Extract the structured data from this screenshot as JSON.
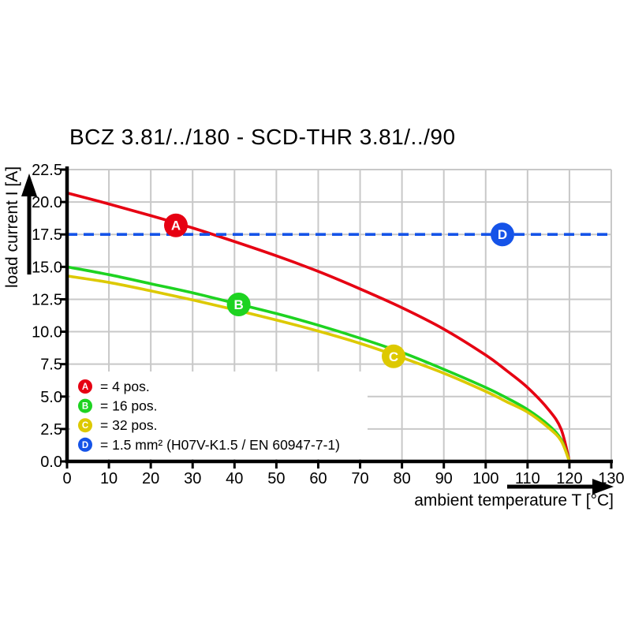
{
  "chart_data": {
    "type": "line",
    "title": "BCZ 3.81/../180 - SCD-THR 3.81/../90",
    "xlabel": "ambient temperature T [°C]",
    "ylabel": "load current I [A]",
    "xlim": [
      0,
      130
    ],
    "ylim": [
      0,
      22.5
    ],
    "grid": true,
    "legend_position": "inside-bottom-left",
    "x_ticks": [
      0,
      10,
      20,
      30,
      40,
      50,
      60,
      70,
      80,
      90,
      100,
      110,
      120,
      130
    ],
    "x_tick_labels": [
      "0",
      "10",
      "20",
      "30",
      "40",
      "50",
      "60",
      "70",
      "80",
      "90",
      "100",
      "110",
      "120",
      "130"
    ],
    "y_ticks": [
      0,
      2.5,
      5,
      7.5,
      10,
      12.5,
      15,
      17.5,
      20,
      22.5
    ],
    "y_tick_labels": [
      "0.0",
      "2.5",
      "5.0",
      "7.5",
      "10.0",
      "12.5",
      "15.0",
      "17.5",
      "20.0",
      "22.5"
    ],
    "series": [
      {
        "id": "A",
        "legend_label": "= 4 pos.",
        "color": "#e60012",
        "style": "solid",
        "marker": {
          "x": 26,
          "y": 18.2
        },
        "points": [
          [
            0,
            20.7
          ],
          [
            10,
            19.85
          ],
          [
            20,
            18.95
          ],
          [
            30,
            18.0
          ],
          [
            40,
            16.95
          ],
          [
            50,
            15.85
          ],
          [
            60,
            14.65
          ],
          [
            70,
            13.3
          ],
          [
            80,
            11.85
          ],
          [
            90,
            10.2
          ],
          [
            100,
            8.2
          ],
          [
            105,
            7.0
          ],
          [
            110,
            5.7
          ],
          [
            115,
            4.0
          ],
          [
            118,
            2.5
          ],
          [
            120,
            0
          ]
        ]
      },
      {
        "id": "B",
        "legend_label": "= 16 pos.",
        "color": "#1ed321",
        "style": "solid",
        "marker": {
          "x": 41,
          "y": 12.1
        },
        "points": [
          [
            0,
            15.0
          ],
          [
            10,
            14.4
          ],
          [
            20,
            13.7
          ],
          [
            30,
            13.0
          ],
          [
            40,
            12.2
          ],
          [
            50,
            11.4
          ],
          [
            60,
            10.5
          ],
          [
            70,
            9.5
          ],
          [
            80,
            8.4
          ],
          [
            90,
            7.1
          ],
          [
            100,
            5.7
          ],
          [
            105,
            4.9
          ],
          [
            110,
            4.0
          ],
          [
            115,
            2.8
          ],
          [
            118,
            1.7
          ],
          [
            120,
            0
          ]
        ]
      },
      {
        "id": "C",
        "legend_label": "= 32 pos.",
        "color": "#ddc900",
        "style": "solid",
        "marker": {
          "x": 78,
          "y": 8.1
        },
        "points": [
          [
            0,
            14.3
          ],
          [
            10,
            13.8
          ],
          [
            20,
            13.15
          ],
          [
            30,
            12.45
          ],
          [
            40,
            11.7
          ],
          [
            50,
            10.9
          ],
          [
            60,
            10.05
          ],
          [
            70,
            9.1
          ],
          [
            80,
            8.0
          ],
          [
            90,
            6.8
          ],
          [
            100,
            5.4
          ],
          [
            105,
            4.6
          ],
          [
            110,
            3.8
          ],
          [
            115,
            2.6
          ],
          [
            118,
            1.6
          ],
          [
            120,
            0
          ]
        ]
      },
      {
        "id": "D",
        "legend_label": "= 1.5 mm² (H07V-K1.5 / EN 60947-7-1)",
        "color": "#1553e8",
        "style": "dashed",
        "marker": {
          "x": 104,
          "y": 17.5
        },
        "points": [
          [
            0,
            17.5
          ],
          [
            130,
            17.5
          ]
        ]
      }
    ],
    "colors": {
      "grid": "#c8c8c8",
      "axis": "#000000",
      "background": "#ffffff"
    }
  }
}
